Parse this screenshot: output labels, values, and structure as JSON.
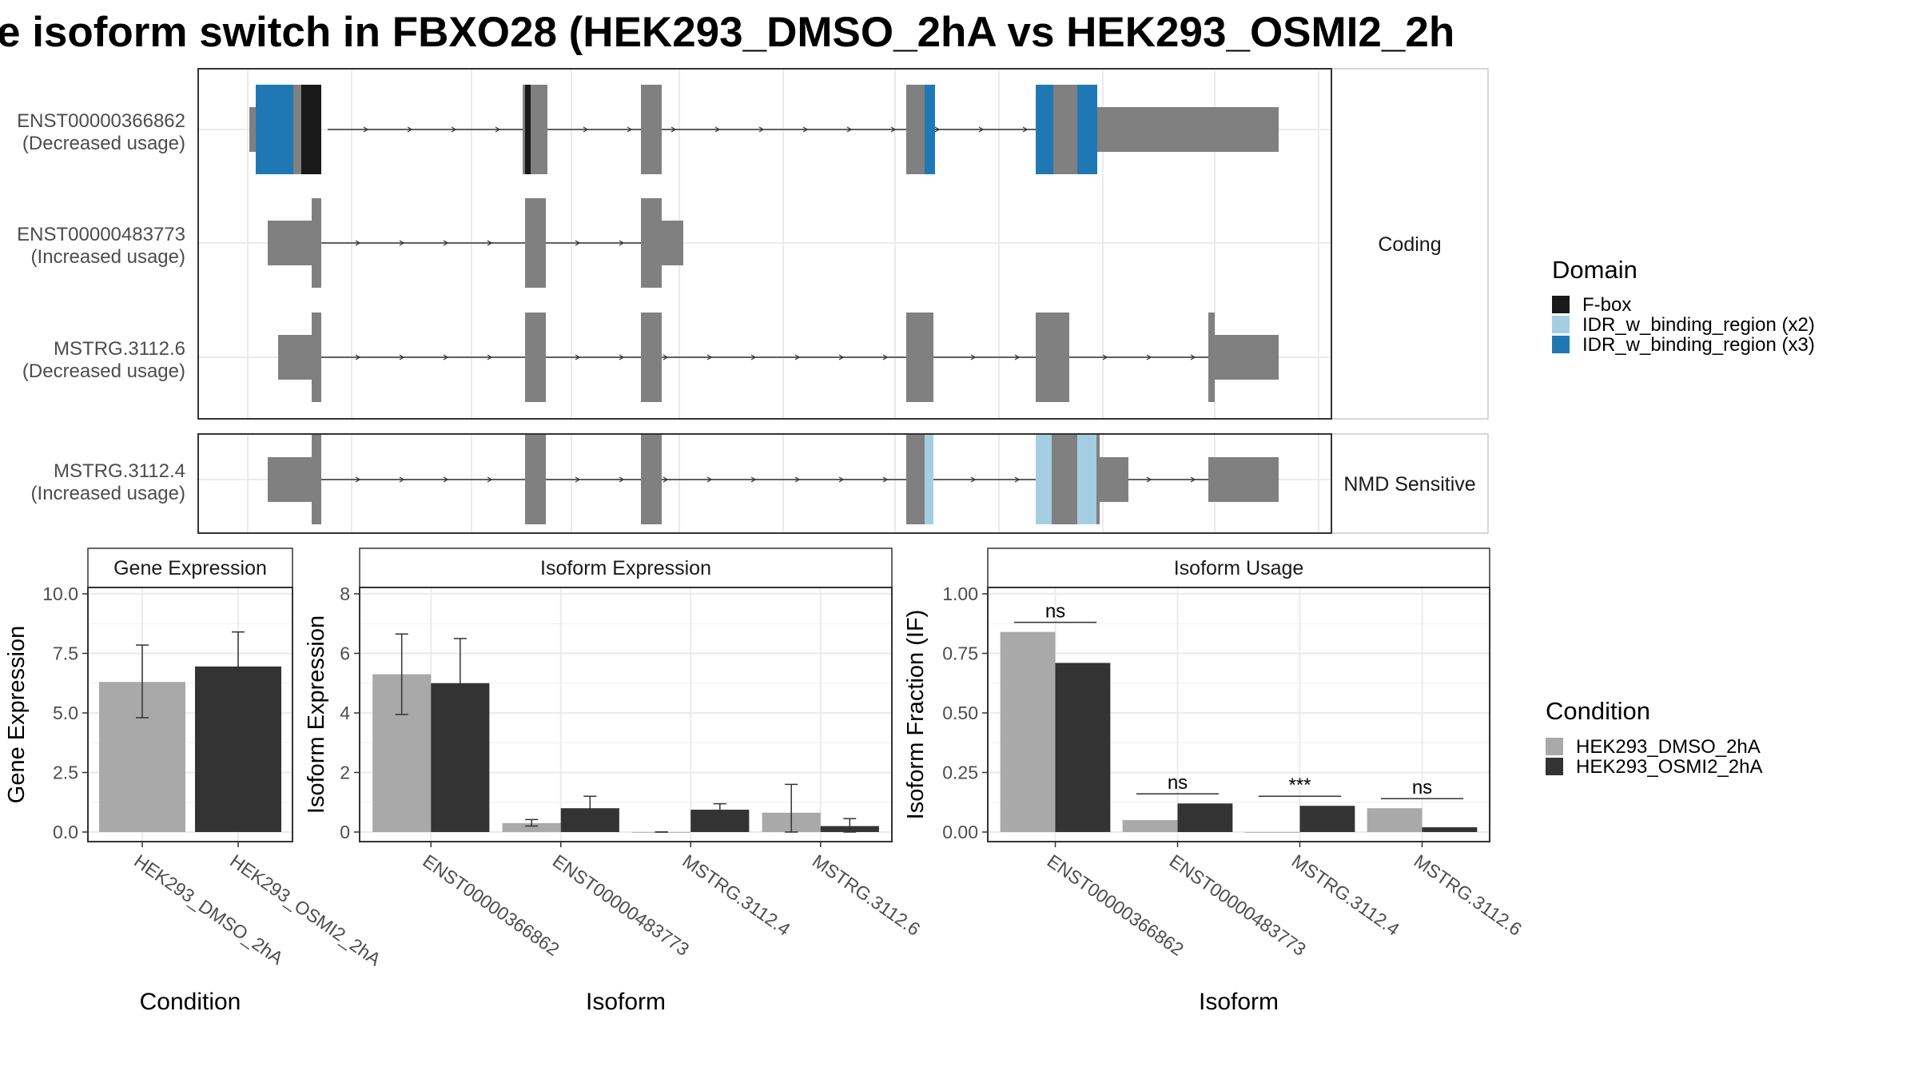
{
  "title": "e isoform switch in FBXO28 (HEK293_DMSO_2hA vs HEK293_OSMI2_2h",
  "colors": {
    "exon": "#808080",
    "fbox": "#1a1a1a",
    "idr2": "#a6cee3",
    "idr3": "#1f78b4",
    "dmso": "#a9a9a9",
    "osmi2": "#333333"
  },
  "transcripts": {
    "facets": [
      "Coding",
      "NMD Sensitive"
    ],
    "rows": [
      {
        "id": "ENST00000366862",
        "usage": "(Decreased usage)",
        "facet": "Coding"
      },
      {
        "id": "ENST00000483773",
        "usage": "(Increased usage)",
        "facet": "Coding"
      },
      {
        "id": "MSTRG.3112.6",
        "usage": "(Decreased usage)",
        "facet": "Coding"
      },
      {
        "id": "MSTRG.3112.4",
        "usage": "(Increased usage)",
        "facet": "NMD Sensitive"
      }
    ]
  },
  "domain_legend": {
    "title": "Domain",
    "items": [
      {
        "label": "F-box",
        "color": "#1a1a1a"
      },
      {
        "label": "IDR_w_binding_region (x2)",
        "color": "#a6cee3"
      },
      {
        "label": "IDR_w_binding_region (x3)",
        "color": "#1f78b4"
      }
    ]
  },
  "condition_legend": {
    "title": "Condition",
    "items": [
      {
        "label": "HEK293_DMSO_2hA",
        "color": "#a9a9a9"
      },
      {
        "label": "HEK293_OSMI2_2hA",
        "color": "#333333"
      }
    ]
  },
  "chart_data": [
    {
      "type": "bar",
      "strip": "Gene Expression",
      "xlabel": "Condition",
      "ylabel": "Gene Expression",
      "ylim": [
        0,
        10
      ],
      "yticks": [
        "0.0",
        "2.5",
        "5.0",
        "7.5",
        "10.0"
      ],
      "categories": [
        "HEK293_DMSO_2hA",
        "HEK293_OSMI2_2hA"
      ],
      "values": [
        6.3,
        6.95
      ],
      "errors": [
        [
          4.8,
          7.85
        ],
        [
          5.55,
          8.4
        ]
      ]
    },
    {
      "type": "bar",
      "strip": "Isoform Expression",
      "xlabel": "Isoform",
      "ylabel": "Isoform Expression",
      "ylim": [
        0,
        8
      ],
      "yticks": [
        "0",
        "2",
        "4",
        "6",
        "8"
      ],
      "categories": [
        "ENST00000366862",
        "ENST00000483773",
        "MSTRG.3112.4",
        "MSTRG.3112.6"
      ],
      "series": [
        {
          "name": "HEK293_DMSO_2hA",
          "values": [
            5.3,
            0.3,
            0.0,
            0.65
          ],
          "errors": [
            [
              3.95,
              6.65
            ],
            [
              0.2,
              0.42
            ],
            [
              0.0,
              0.0
            ],
            [
              0.0,
              1.6
            ]
          ]
        },
        {
          "name": "HEK293_OSMI2_2hA",
          "values": [
            5.0,
            0.8,
            0.75,
            0.2
          ],
          "errors": [
            [
              3.5,
              6.5
            ],
            [
              0.4,
              1.2
            ],
            [
              0.55,
              0.95
            ],
            [
              0.0,
              0.45
            ]
          ]
        }
      ]
    },
    {
      "type": "bar",
      "strip": "Isoform Usage",
      "xlabel": "Isoform",
      "ylabel": "Isoform Fraction (IF)",
      "ylim": [
        0,
        1
      ],
      "yticks": [
        "0.00",
        "0.25",
        "0.50",
        "0.75",
        "1.00"
      ],
      "categories": [
        "ENST00000366862",
        "ENST00000483773",
        "MSTRG.3112.4",
        "MSTRG.3112.6"
      ],
      "series": [
        {
          "name": "HEK293_DMSO_2hA",
          "values": [
            0.84,
            0.05,
            0.0,
            0.1
          ]
        },
        {
          "name": "HEK293_OSMI2_2hA",
          "values": [
            0.71,
            0.12,
            0.11,
            0.02
          ]
        }
      ],
      "significance": [
        "ns",
        "ns",
        "***",
        "ns"
      ]
    }
  ]
}
